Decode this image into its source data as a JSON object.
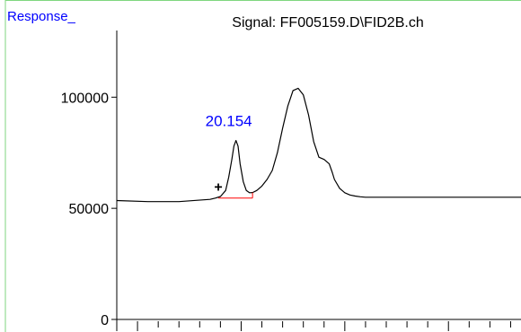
{
  "window": {
    "response_label": "Response_",
    "signal_title": "Signal: FF005159.D\\FID2B.ch"
  },
  "colors": {
    "frame": "#7fd67f",
    "axis": "#000000",
    "trace": "#000000",
    "baseline": "#ff0000",
    "label_blue": "#0000ff"
  },
  "chart_data": {
    "type": "line",
    "title": "Signal: FF005159.D\\FID2B.ch",
    "ylabel": "Response_",
    "xlabel": "",
    "ylim": [
      0,
      130000
    ],
    "yticks": [
      0,
      50000,
      100000
    ],
    "ytick_labels": [
      "0",
      "50000",
      "100000"
    ],
    "xlim": [
      19.0,
      22.9
    ],
    "xticks": [
      19.2,
      20.2,
      21.2,
      22.2
    ],
    "xtick_labels": [],
    "grid": false,
    "legend": "none",
    "series": [
      {
        "x": [
          19.0,
          19.3,
          19.6,
          19.9,
          19.95,
          20.0,
          20.05,
          20.08,
          20.11,
          20.13,
          20.15,
          20.17,
          20.19,
          20.22,
          20.25,
          20.28,
          20.31,
          20.35,
          20.4,
          20.45,
          20.5,
          20.55,
          20.6,
          20.65,
          20.7,
          20.75,
          20.8,
          20.85,
          20.9,
          20.95,
          21.0,
          21.05,
          21.08,
          21.1,
          21.15,
          21.2,
          21.25,
          21.3,
          21.35,
          21.4,
          21.45,
          21.5,
          21.55,
          21.6,
          21.65,
          22.0,
          22.4,
          22.9
        ],
        "y": [
          53500,
          53000,
          53000,
          54000,
          54600,
          55300,
          58000,
          64000,
          72000,
          78000,
          80500,
          78000,
          70000,
          62000,
          58000,
          57000,
          57100,
          58000,
          60000,
          63000,
          67000,
          75000,
          86000,
          96000,
          103000,
          104000,
          101000,
          92000,
          80000,
          73000,
          72000,
          70000,
          66000,
          63000,
          59000,
          57000,
          56000,
          55500,
          55200,
          55000,
          55000,
          55000,
          55000,
          55000,
          55000,
          55000,
          55000,
          55000
        ]
      }
    ],
    "annotations": [
      {
        "text": "20.154",
        "x": 20.08,
        "y": 87000
      },
      {
        "text": "+",
        "x": 19.98,
        "y": 57500
      }
    ],
    "integration_baseline": {
      "x_start": 19.98,
      "x_end": 20.31,
      "y": 54600
    }
  }
}
